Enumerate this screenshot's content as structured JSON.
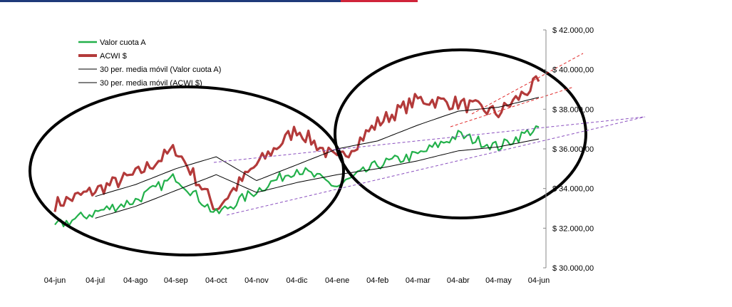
{
  "chart_data": {
    "type": "line",
    "x": [
      "04-jun",
      "04-jul",
      "04-ago",
      "04-sep",
      "04-oct",
      "04-nov",
      "04-dic",
      "04-ene",
      "04-feb",
      "04-mar",
      "04-abr",
      "04-may",
      "04-jun"
    ],
    "y_ticks": [
      "$ 30.000,00",
      "$ 32.000,00",
      "$ 34.000,00",
      "$ 36.000,00",
      "$ 38.000,00",
      "$ 40.000,00",
      "$ 42.000,00"
    ],
    "ylim": [
      30000,
      42000
    ],
    "y_axis_position": "right",
    "grid": false,
    "legend_position": "top-left",
    "series": [
      {
        "name": "Valor cuota A",
        "color": "#22b04a",
        "values": [
          32100,
          32800,
          33400,
          34600,
          32700,
          33900,
          35000,
          34100,
          35200,
          35700,
          36700,
          36100,
          37100
        ]
      },
      {
        "name": "ACWI $",
        "color": "#b33a3a",
        "values": [
          33200,
          33900,
          34700,
          36000,
          33000,
          35200,
          37000,
          35400,
          37300,
          38500,
          38300,
          37800,
          39400
        ]
      },
      {
        "name": "30 per. media móvil (Valor cuota A)",
        "color": "#000000",
        "values": [
          null,
          32500,
          33100,
          33900,
          34700,
          33800,
          34300,
          34700,
          35000,
          35400,
          35900,
          36100,
          36500
        ]
      },
      {
        "name": "30 per. media móvil (ACWI $)",
        "color": "#000000",
        "values": [
          null,
          33600,
          34200,
          35000,
          35600,
          34400,
          35200,
          36000,
          36400,
          37200,
          37900,
          38100,
          38600
        ]
      }
    ],
    "annotations": [
      "ellipse-left",
      "ellipse-right",
      "purple-trendlines",
      "red-channel"
    ]
  }
}
